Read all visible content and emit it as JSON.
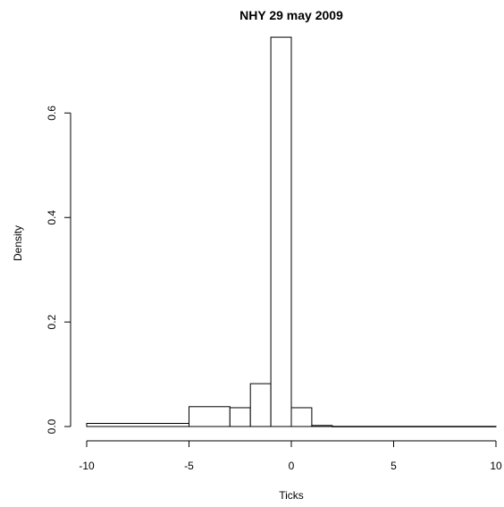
{
  "chart_data": {
    "type": "bar",
    "title": "NHY 29 may 2009",
    "xlabel": "Ticks",
    "ylabel": "Density",
    "xlim": [
      -10,
      10
    ],
    "ylim": [
      0,
      0.75
    ],
    "x_ticks": [
      -10,
      -5,
      0,
      5,
      10
    ],
    "x_tick_labels": [
      "-10",
      "-5",
      "0",
      "5",
      "10"
    ],
    "y_ticks": [
      0.0,
      0.2,
      0.4,
      0.6
    ],
    "y_tick_labels": [
      "0.0",
      "0.2",
      "0.4",
      "0.6"
    ],
    "bins": [
      {
        "x0": -10,
        "x1": -5,
        "density": 0.006
      },
      {
        "x0": -5,
        "x1": -3,
        "density": 0.038
      },
      {
        "x0": -3,
        "x1": -2,
        "density": 0.036
      },
      {
        "x0": -2,
        "x1": -1,
        "density": 0.082
      },
      {
        "x0": -1,
        "x1": 0,
        "density": 0.745
      },
      {
        "x0": 0,
        "x1": 1,
        "density": 0.036
      },
      {
        "x0": 1,
        "x1": 2,
        "density": 0.002
      },
      {
        "x0": 2,
        "x1": 10,
        "density": 0.0003
      }
    ],
    "grid": false,
    "legend": "none"
  }
}
